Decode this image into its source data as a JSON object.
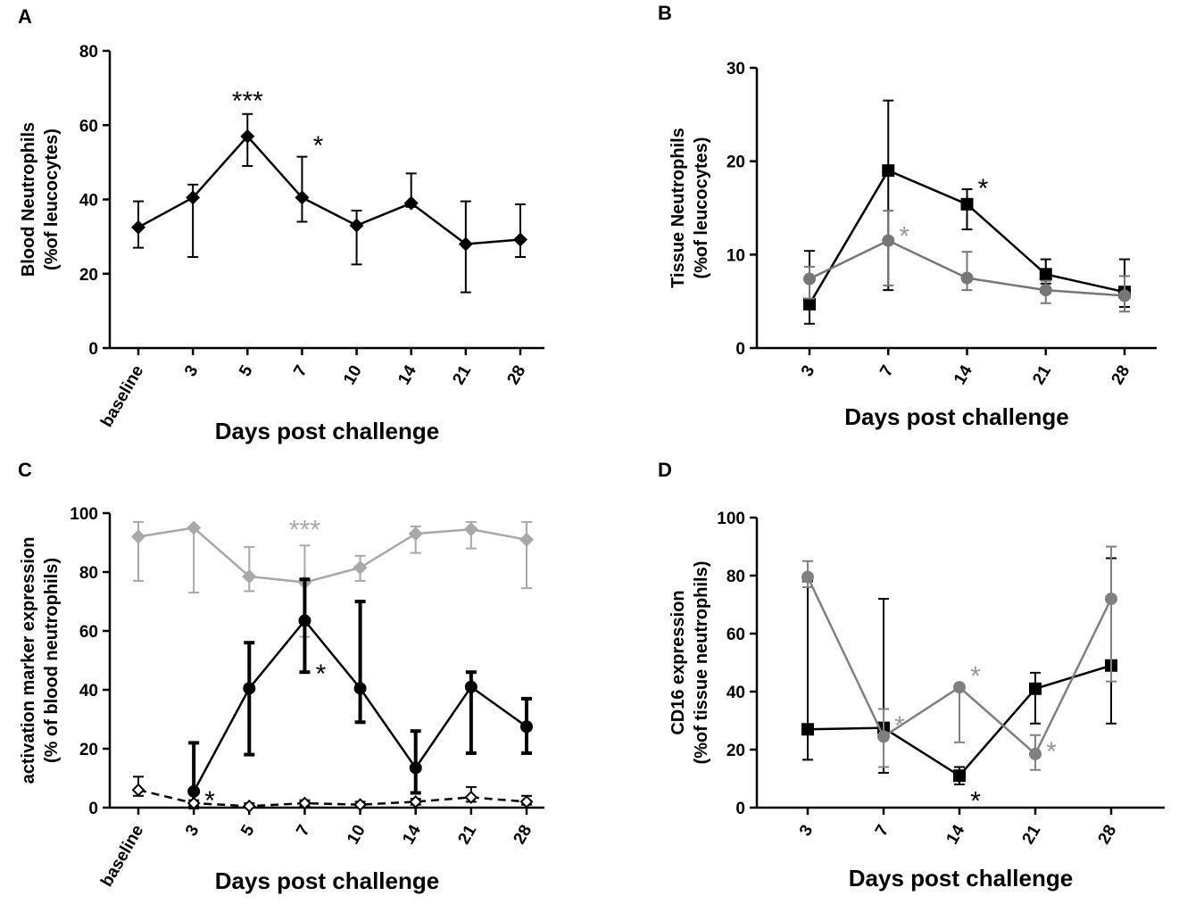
{
  "chart_data": [
    {
      "panel": "A",
      "type": "line",
      "ylabel_line1": "Blood Neutrophils",
      "ylabel_line2": "(%of leucocytes)",
      "xlabel": "Days post challenge",
      "categories": [
        "baseline",
        "3",
        "5",
        "7",
        "10",
        "14",
        "21",
        "28"
      ],
      "ylim": [
        0,
        80
      ],
      "yticks": [
        0,
        20,
        40,
        60,
        80
      ],
      "series": [
        {
          "name": "blood neutrophils",
          "color": "#000000",
          "marker": "diamond",
          "values": [
            32.5,
            40.5,
            57,
            40.5,
            33,
            39,
            28,
            29.2
          ],
          "err_low": [
            27,
            24.5,
            49,
            34,
            22.5,
            38,
            15,
            24.5
          ],
          "err_high": [
            39.5,
            44,
            63,
            51.5,
            37,
            47,
            39.5,
            38.7
          ]
        }
      ],
      "annotations": [
        {
          "text": "***",
          "category": "5",
          "y": 67,
          "color": "#000000"
        },
        {
          "text": "*",
          "category": "7",
          "y": 55,
          "color": "#000000"
        }
      ]
    },
    {
      "panel": "B",
      "type": "line",
      "ylabel_line1": "Tissue Neutrophils",
      "ylabel_line2": "(%of leucocytes)",
      "xlabel": "Days post challenge",
      "categories": [
        "3",
        "7",
        "14",
        "21",
        "28"
      ],
      "ylim": [
        0,
        30
      ],
      "yticks": [
        0,
        10,
        20,
        30
      ],
      "series": [
        {
          "name": "black series",
          "color": "#000000",
          "marker": "square",
          "values": [
            4.7,
            19,
            15.4,
            7.9,
            6
          ],
          "err_low": [
            2.6,
            6.2,
            12.7,
            6.9,
            4.4
          ],
          "err_high": [
            10.4,
            26.5,
            17,
            9.5,
            9.5
          ]
        },
        {
          "name": "gray series",
          "color": "#777777",
          "marker": "circle",
          "values": [
            7.4,
            11.5,
            7.5,
            6.2,
            5.6
          ],
          "err_low": [
            5.3,
            6.7,
            6.2,
            4.8,
            3.9
          ],
          "err_high": [
            8.7,
            14.7,
            10.3,
            7.2,
            7.7
          ]
        }
      ],
      "annotations": [
        {
          "text": "*",
          "category": "14",
          "y": 17.3,
          "color": "#000000"
        },
        {
          "text": "*",
          "category": "7",
          "y": 12.2,
          "color": "#999999"
        }
      ]
    },
    {
      "panel": "C",
      "type": "line",
      "ylabel_line1": "activation marker expression",
      "ylabel_line2": "(% of blood neutrophils)",
      "xlabel": "Days post challenge",
      "categories": [
        "baseline",
        "3",
        "5",
        "7",
        "10",
        "14",
        "21",
        "28"
      ],
      "ylim": [
        0,
        100
      ],
      "yticks": [
        0,
        20,
        40,
        60,
        80,
        100
      ],
      "series": [
        {
          "name": "light gray series",
          "color": "#a8a8a8",
          "marker": "diamond",
          "values": [
            92,
            95,
            78.5,
            76.5,
            81.5,
            93,
            94.5,
            91
          ],
          "err_low": [
            77,
            73,
            73.5,
            58,
            77,
            86.5,
            88,
            74.5
          ],
          "err_high": [
            97,
            95,
            88.5,
            89,
            85.5,
            95.5,
            97,
            97
          ]
        },
        {
          "name": "black series",
          "color": "#000000",
          "marker": "circle",
          "values": [
            null,
            5.5,
            40.5,
            63.5,
            40.5,
            13.5,
            41,
            27.5
          ],
          "err_low": [
            null,
            0,
            18,
            46,
            29,
            5,
            18.5,
            18.5
          ],
          "err_high": [
            null,
            22,
            56,
            77.5,
            70,
            26,
            46,
            37
          ]
        },
        {
          "name": "dashed series",
          "color": "#000000",
          "marker": "open-diamond",
          "dashed": true,
          "values": [
            6,
            1.5,
            0.5,
            1.5,
            1,
            2,
            3.5,
            2
          ],
          "err_low": [
            4,
            0.5,
            0,
            0.5,
            0,
            1,
            2,
            1
          ],
          "err_high": [
            10.5,
            2.5,
            1.5,
            2.5,
            2,
            3,
            7,
            4
          ]
        }
      ],
      "annotations": [
        {
          "text": "***",
          "category": "7",
          "y": 95,
          "color": "#a8a8a8"
        },
        {
          "text": "*",
          "category": "7",
          "y": 46,
          "color": "#000000"
        },
        {
          "text": "*",
          "category": "3",
          "y": 3,
          "color": "#000000"
        }
      ]
    },
    {
      "panel": "D",
      "type": "line",
      "ylabel_line1": "CD16 expression",
      "ylabel_line2": "(%of tissue neutrophils)",
      "xlabel": "Days post challenge",
      "categories": [
        "3",
        "7",
        "14",
        "21",
        "28"
      ],
      "ylim": [
        0,
        100
      ],
      "yticks": [
        0,
        20,
        40,
        60,
        80,
        100
      ],
      "series": [
        {
          "name": "black series",
          "color": "#000000",
          "marker": "square",
          "values": [
            27,
            27.5,
            11,
            41,
            49
          ],
          "err_low": [
            16.5,
            12,
            8,
            29,
            29
          ],
          "err_high": [
            78,
            72,
            14,
            46.5,
            86
          ]
        },
        {
          "name": "gray series",
          "color": "#808080",
          "marker": "circle",
          "values": [
            79.5,
            24.5,
            41.5,
            18.5,
            72
          ],
          "err_low": [
            76,
            14,
            22.5,
            13,
            43.5
          ],
          "err_high": [
            85,
            34,
            42,
            25,
            90
          ]
        }
      ],
      "annotations": [
        {
          "text": "*",
          "category": "14",
          "y": 3,
          "color": "#000000"
        },
        {
          "text": "*",
          "category": "7",
          "y": 29,
          "color": "#999999"
        },
        {
          "text": "*",
          "category": "14",
          "y": 46,
          "color": "#999999"
        },
        {
          "text": "*",
          "category": "21",
          "y": 20,
          "color": "#999999"
        }
      ]
    }
  ]
}
